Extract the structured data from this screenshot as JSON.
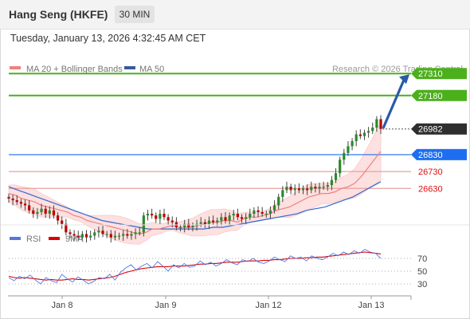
{
  "header": {
    "title": "Hang Seng (HKFE)",
    "timeframe": "30 MIN",
    "timestamp": "Tuesday, January 13, 2026 4:32:45 AM CET"
  },
  "legend": {
    "ma20_bb": "MA 20 + Bollinger Bands",
    "ma50": "MA 50",
    "credit": "Research © 2026 Trading Central",
    "rsi": "RSI",
    "ma9": "9MA"
  },
  "colors": {
    "candle": "#c00000",
    "ma20": "#f08080",
    "bands_fill": "#fde0e0",
    "ma50": "#3366cc",
    "target": "#4caf1c",
    "current": "#2e2e2e",
    "pivot": "#1e6ef0",
    "support": "#e8a0a0",
    "support_text": "#e01010",
    "rsi": "#5577dd",
    "rsi_ma": "#dd0000",
    "arrow": "#2a5aa8"
  },
  "chart_data": [
    {
      "type": "candlestick",
      "y_range": [
        26400,
        27330
      ],
      "x_labels": [
        "Jan 8",
        "Jan 9",
        "Jan 12",
        "Jan 13"
      ],
      "levels": [
        {
          "label": "27310",
          "value": 27310,
          "kind": "resistance"
        },
        {
          "label": "27180",
          "value": 27180,
          "kind": "resistance"
        },
        {
          "label": "26982",
          "value": 26982,
          "kind": "last"
        },
        {
          "label": "26830",
          "value": 26830,
          "kind": "pivot"
        },
        {
          "label": "26730",
          "value": 26730,
          "kind": "support"
        },
        {
          "label": "26630",
          "value": 26630,
          "kind": "support"
        }
      ],
      "closes": [
        26570,
        26560,
        26550,
        26540,
        26530,
        26500,
        26480,
        26490,
        26510,
        26480,
        26500,
        26470,
        26440,
        26420,
        26370,
        26360,
        26350,
        26340,
        26360,
        26340,
        26350,
        26370,
        26380,
        26360,
        26360,
        26340,
        26350,
        26350,
        26360,
        26350,
        26360,
        26370,
        26370,
        26470,
        26480,
        26470,
        26450,
        26480,
        26460,
        26440,
        26430,
        26400,
        26400,
        26420,
        26400,
        26410,
        26420,
        26430,
        26420,
        26440,
        26430,
        26440,
        26460,
        26440,
        26470,
        26480,
        26460,
        26450,
        26460,
        26480,
        26500,
        26490,
        26480,
        26480,
        26500,
        26530,
        26580,
        26620,
        26640,
        26620,
        26630,
        26620,
        26630,
        26620,
        26640,
        26630,
        26640,
        26640,
        26650,
        26680,
        26720,
        26800,
        26840,
        26880,
        26910,
        26950,
        26940,
        26960,
        26970,
        26990,
        27040,
        26982
      ],
      "ma20": [
        26600,
        26590,
        26570,
        26560,
        26550,
        26530,
        26520,
        26510,
        26500,
        26490,
        26470,
        26460,
        26440,
        26430,
        26420,
        26410,
        26400,
        26390,
        26380,
        26370,
        26360,
        26370,
        26390,
        26390,
        26400,
        26410,
        26400,
        26400,
        26400,
        26410,
        26420,
        26430,
        26430,
        26440,
        26440,
        26430,
        26450,
        26460,
        26460,
        26470,
        26480,
        26500,
        26510,
        26520,
        26540,
        26560,
        26580,
        26590,
        26600,
        26600,
        26610,
        26630,
        26640,
        26660,
        26700,
        26750,
        26800,
        26850
      ],
      "ma50": [
        26640,
        26620,
        26600,
        26580,
        26560,
        26540,
        26520,
        26500,
        26480,
        26460,
        26440,
        26430,
        26420,
        26410,
        26400,
        26390,
        26390,
        26390,
        26390,
        26390,
        26390,
        26390,
        26400,
        26400,
        26410,
        26420,
        26430,
        26440,
        26450,
        26460,
        26470,
        26480,
        26500,
        26510,
        26520,
        26540,
        26560,
        26580,
        26610,
        26640,
        26670
      ]
    },
    {
      "type": "line",
      "name": "RSI",
      "y_ticks": [
        30,
        50,
        70
      ],
      "y_range": [
        15,
        90
      ],
      "rsi": [
        40,
        35,
        42,
        38,
        44,
        36,
        30,
        40,
        35,
        32,
        45,
        38,
        33,
        41,
        36,
        30,
        34,
        40,
        38,
        45,
        36,
        48,
        55,
        60,
        52,
        58,
        62,
        55,
        65,
        58,
        50,
        60,
        55,
        62,
        56,
        58,
        66,
        60,
        64,
        58,
        62,
        68,
        63,
        60,
        68,
        65,
        70,
        64,
        62,
        66,
        72,
        68,
        65,
        74,
        70,
        72,
        66,
        74,
        70,
        68,
        72,
        78,
        74,
        80,
        76,
        82,
        78,
        84,
        80,
        78,
        70
      ],
      "ma9": [
        42,
        40,
        39,
        40,
        39,
        38,
        37,
        36,
        37,
        36,
        36,
        37,
        38,
        37,
        37,
        36,
        37,
        38,
        39,
        40,
        42,
        45,
        48,
        50,
        52,
        54,
        55,
        56,
        57,
        57,
        57,
        58,
        58,
        58,
        59,
        60,
        61,
        61,
        62,
        62,
        63,
        64,
        64,
        64,
        65,
        66,
        66,
        66,
        67,
        67,
        68,
        68,
        69,
        70,
        70,
        70,
        71,
        71,
        72,
        72,
        73,
        74,
        75,
        76,
        77,
        78,
        79,
        80,
        79,
        78,
        77
      ]
    }
  ]
}
